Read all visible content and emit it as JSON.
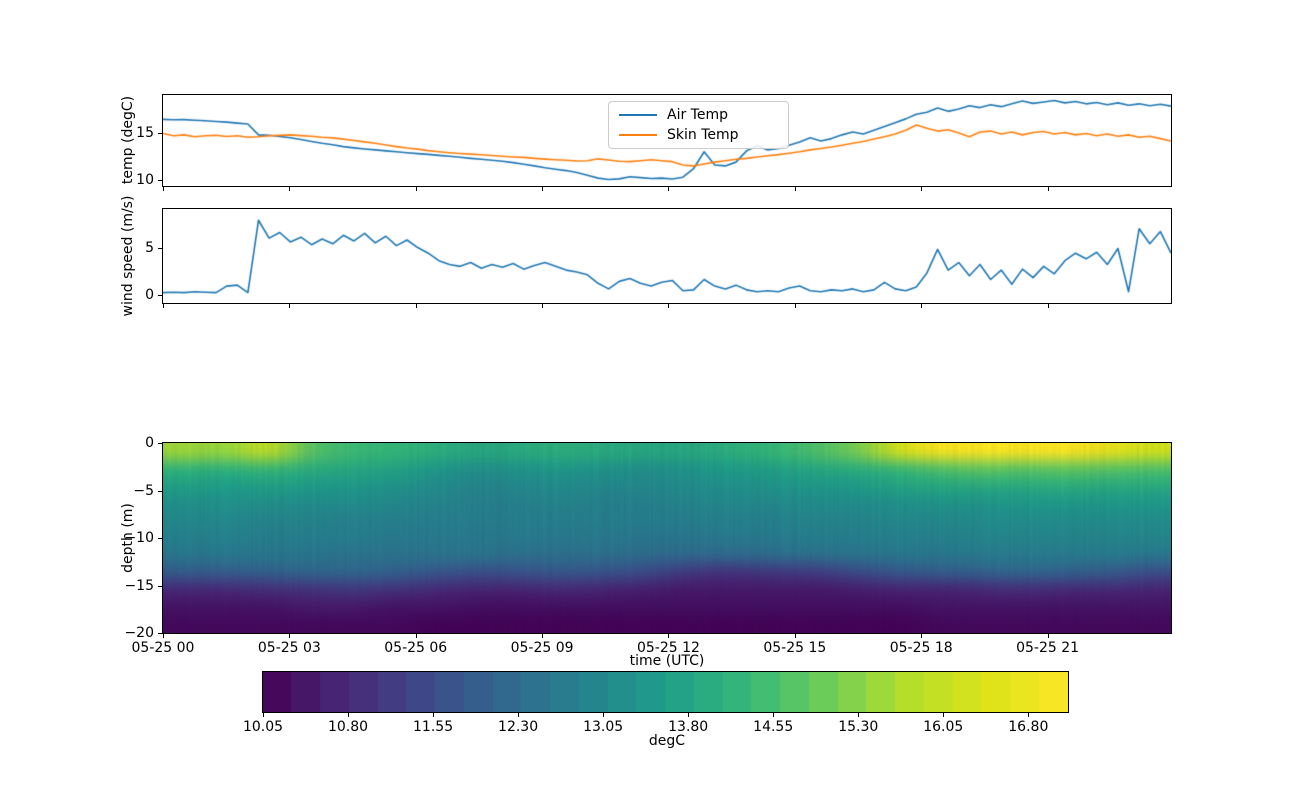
{
  "figure": {
    "background": "#ffffff"
  },
  "time_axis": {
    "tick_hours": [
      0,
      3,
      6,
      9,
      12,
      15,
      18,
      21
    ],
    "tick_labels": [
      "05-25 00",
      "05-25 03",
      "05-25 06",
      "05-25 09",
      "05-25 12",
      "05-25 15",
      "05-25 18",
      "05-25 21"
    ],
    "xlim_hours": [
      0,
      23.93
    ],
    "xlabel": "time (UTC)"
  },
  "chart_data": [
    {
      "type": "line",
      "ylabel": "temp (degC)",
      "ylim": [
        9.36,
        19.04
      ],
      "yticks": [
        15,
        10
      ],
      "ytick_labels": [
        "15",
        "10"
      ],
      "legend": {
        "position": "upper center"
      },
      "x_start_hour": 0,
      "x_step_hours": 0.25,
      "series": [
        {
          "name": "Air Temp",
          "color": "#1f77b4",
          "values": [
            16.45,
            16.4,
            16.42,
            16.35,
            16.3,
            16.22,
            16.15,
            16.05,
            15.95,
            14.8,
            14.75,
            14.62,
            14.5,
            14.3,
            14.1,
            13.9,
            13.75,
            13.55,
            13.42,
            13.3,
            13.2,
            13.1,
            13.0,
            12.9,
            12.8,
            12.72,
            12.62,
            12.52,
            12.42,
            12.3,
            12.2,
            12.1,
            12.0,
            11.85,
            11.68,
            11.5,
            11.3,
            11.15,
            11.0,
            10.8,
            10.5,
            10.2,
            10.05,
            10.12,
            10.35,
            10.25,
            10.15,
            10.2,
            10.1,
            10.3,
            11.2,
            13.0,
            11.6,
            11.5,
            11.9,
            13.1,
            13.65,
            13.2,
            13.35,
            13.7,
            14.05,
            14.5,
            14.15,
            14.4,
            14.8,
            15.1,
            14.9,
            15.3,
            15.7,
            16.1,
            16.5,
            17.0,
            17.2,
            17.65,
            17.3,
            17.55,
            17.9,
            17.7,
            18.0,
            17.8,
            18.1,
            18.4,
            18.15,
            18.3,
            18.45,
            18.2,
            18.35,
            18.1,
            18.25,
            18.0,
            18.2,
            17.95,
            18.1,
            17.9,
            18.05,
            17.85
          ]
        },
        {
          "name": "Skin Temp",
          "color": "#ff7f0e",
          "values": [
            14.95,
            14.7,
            14.8,
            14.6,
            14.7,
            14.75,
            14.62,
            14.7,
            14.55,
            14.6,
            14.7,
            14.75,
            14.8,
            14.72,
            14.65,
            14.55,
            14.48,
            14.35,
            14.2,
            14.05,
            13.9,
            13.72,
            13.55,
            13.4,
            13.28,
            13.12,
            13.0,
            12.9,
            12.82,
            12.75,
            12.68,
            12.6,
            12.52,
            12.45,
            12.4,
            12.3,
            12.22,
            12.15,
            12.1,
            12.02,
            12.05,
            12.25,
            12.12,
            12.0,
            11.95,
            12.05,
            12.15,
            12.05,
            11.95,
            11.6,
            11.5,
            11.7,
            11.9,
            12.05,
            12.2,
            12.3,
            12.45,
            12.58,
            12.7,
            12.85,
            13.0,
            13.2,
            13.35,
            13.5,
            13.7,
            13.9,
            14.1,
            14.35,
            14.6,
            14.9,
            15.3,
            15.85,
            15.5,
            15.2,
            15.35,
            15.0,
            14.6,
            15.1,
            15.2,
            14.9,
            15.1,
            14.8,
            15.05,
            15.15,
            14.9,
            15.05,
            14.8,
            14.95,
            14.7,
            14.9,
            14.65,
            14.8,
            14.55,
            14.65,
            14.4,
            14.15
          ]
        }
      ]
    },
    {
      "type": "line",
      "ylabel": "wind speed (m/s)",
      "ylim": [
        -0.9,
        9.1
      ],
      "yticks": [
        5,
        0
      ],
      "ytick_labels": [
        "5",
        "0"
      ],
      "x_start_hour": 0,
      "x_step_hours": 0.25,
      "series": [
        {
          "name": "wind speed",
          "color": "#1f77b4",
          "values": [
            0.2,
            0.25,
            0.2,
            0.3,
            0.25,
            0.2,
            0.9,
            1.0,
            0.2,
            7.9,
            6.0,
            6.6,
            5.6,
            6.1,
            5.3,
            5.9,
            5.4,
            6.3,
            5.7,
            6.5,
            5.5,
            6.2,
            5.2,
            5.8,
            5.0,
            4.4,
            3.6,
            3.2,
            3.0,
            3.4,
            2.8,
            3.2,
            2.9,
            3.3,
            2.7,
            3.1,
            3.4,
            3.0,
            2.6,
            2.4,
            2.1,
            1.2,
            0.6,
            1.4,
            1.7,
            1.2,
            0.9,
            1.3,
            1.5,
            0.4,
            0.5,
            1.6,
            0.9,
            0.6,
            1.0,
            0.5,
            0.3,
            0.4,
            0.3,
            0.7,
            0.9,
            0.4,
            0.3,
            0.5,
            0.4,
            0.6,
            0.3,
            0.5,
            1.3,
            0.6,
            0.4,
            0.8,
            2.3,
            4.8,
            2.6,
            3.4,
            2.0,
            3.2,
            1.6,
            2.6,
            1.1,
            2.7,
            1.8,
            3.0,
            2.2,
            3.6,
            4.4,
            3.8,
            4.5,
            3.2,
            4.9,
            0.3,
            7.0,
            5.4,
            6.7,
            4.4
          ]
        }
      ]
    },
    {
      "type": "heatmap",
      "ylabel": "depth (m)",
      "xlabel": "time (UTC)",
      "ylim": [
        -20,
        0
      ],
      "yticks": [
        0,
        -5,
        -10,
        -15,
        -20
      ],
      "ytick_labels": [
        "0",
        "−5",
        "−10",
        "−15",
        "−20"
      ],
      "x_hours": [
        0,
        1,
        2,
        3,
        4,
        5,
        6,
        7,
        8,
        9,
        10,
        11,
        12,
        13,
        14,
        15,
        16,
        17,
        18,
        19,
        20,
        21,
        22,
        23
      ],
      "depths": [
        0,
        -2,
        -4,
        -6,
        -8,
        -10,
        -12,
        -14,
        -16,
        -18,
        -20
      ],
      "values": [
        [
          15.5,
          15.4,
          15.9,
          14.8,
          14.4,
          14.3,
          14.1,
          13.9,
          14.0,
          14.1,
          14.0,
          13.9,
          13.9,
          14.1,
          14.3,
          14.6,
          15.1,
          16.2,
          17.0,
          17.1,
          17.0,
          17.1,
          16.7,
          16.2
        ],
        [
          14.3,
          14.2,
          14.4,
          14.1,
          13.9,
          13.8,
          13.5,
          13.3,
          13.4,
          13.5,
          13.4,
          13.3,
          13.4,
          13.6,
          13.7,
          13.9,
          14.1,
          14.4,
          14.7,
          14.9,
          14.8,
          14.9,
          14.8,
          14.7
        ],
        [
          13.7,
          13.6,
          13.7,
          13.6,
          13.5,
          13.4,
          13.2,
          13.0,
          13.1,
          13.2,
          13.1,
          13.1,
          13.2,
          13.3,
          13.4,
          13.5,
          13.6,
          13.8,
          13.9,
          14.0,
          14.0,
          14.1,
          14.0,
          14.0
        ],
        [
          13.3,
          13.3,
          13.3,
          13.2,
          13.2,
          13.1,
          13.0,
          12.9,
          12.9,
          13.0,
          12.9,
          12.9,
          13.0,
          13.1,
          13.1,
          13.2,
          13.2,
          13.3,
          13.4,
          13.4,
          13.5,
          13.5,
          13.5,
          13.5
        ],
        [
          13.1,
          13.1,
          13.0,
          13.0,
          12.9,
          12.9,
          12.8,
          12.8,
          12.8,
          12.8,
          12.8,
          12.8,
          12.8,
          12.9,
          12.9,
          13.0,
          13.0,
          13.1,
          13.1,
          13.2,
          13.2,
          13.2,
          13.2,
          13.2
        ],
        [
          12.9,
          12.9,
          12.8,
          12.8,
          12.8,
          12.7,
          12.7,
          12.7,
          12.7,
          12.7,
          12.7,
          12.6,
          12.6,
          12.7,
          12.7,
          12.8,
          12.8,
          12.9,
          12.9,
          13.0,
          13.0,
          13.0,
          13.0,
          13.0
        ],
        [
          12.6,
          12.6,
          12.6,
          12.6,
          12.5,
          12.5,
          12.5,
          12.5,
          12.4,
          12.4,
          12.4,
          12.3,
          12.2,
          12.2,
          12.3,
          12.4,
          12.5,
          12.6,
          12.6,
          12.7,
          12.7,
          12.7,
          12.7,
          12.6
        ],
        [
          11.9,
          11.9,
          12.0,
          12.1,
          12.1,
          12.0,
          11.8,
          11.6,
          11.7,
          11.8,
          11.7,
          11.5,
          11.1,
          11.0,
          11.1,
          11.2,
          11.5,
          11.8,
          11.9,
          12.0,
          12.1,
          12.0,
          11.9,
          11.6
        ],
        [
          10.8,
          10.8,
          10.9,
          11.0,
          11.1,
          11.0,
          10.8,
          10.7,
          10.7,
          10.8,
          10.7,
          10.6,
          10.5,
          10.5,
          10.5,
          10.5,
          10.6,
          10.7,
          10.7,
          10.8,
          10.9,
          10.8,
          10.8,
          10.7
        ],
        [
          10.4,
          10.4,
          10.4,
          10.5,
          10.5,
          10.4,
          10.4,
          10.3,
          10.3,
          10.3,
          10.3,
          10.3,
          10.3,
          10.3,
          10.3,
          10.3,
          10.3,
          10.3,
          10.4,
          10.4,
          10.4,
          10.4,
          10.4,
          10.4
        ],
        [
          10.2,
          10.2,
          10.2,
          10.2,
          10.2,
          10.2,
          10.1,
          10.1,
          10.1,
          10.1,
          10.1,
          10.1,
          10.1,
          10.1,
          10.1,
          10.1,
          10.1,
          10.1,
          10.2,
          10.2,
          10.2,
          10.2,
          10.2,
          10.2
        ]
      ],
      "colorbar": {
        "label": "degC",
        "vmin": 10.05,
        "vmax": 17.15,
        "n_steps": 28,
        "ticks": [
          10.05,
          10.8,
          11.55,
          12.3,
          13.05,
          13.8,
          14.55,
          15.3,
          16.05,
          16.8
        ],
        "tick_labels": [
          "10.05",
          "10.80",
          "11.55",
          "12.30",
          "13.05",
          "13.80",
          "14.55",
          "15.30",
          "16.05",
          "16.80"
        ],
        "colormap": "viridis",
        "colormap_stops": [
          "#440154",
          "#482878",
          "#3e4989",
          "#31688e",
          "#26828e",
          "#1f9e89",
          "#35b779",
          "#6dcd59",
          "#b4de2c",
          "#dce319",
          "#fde725"
        ]
      }
    }
  ]
}
